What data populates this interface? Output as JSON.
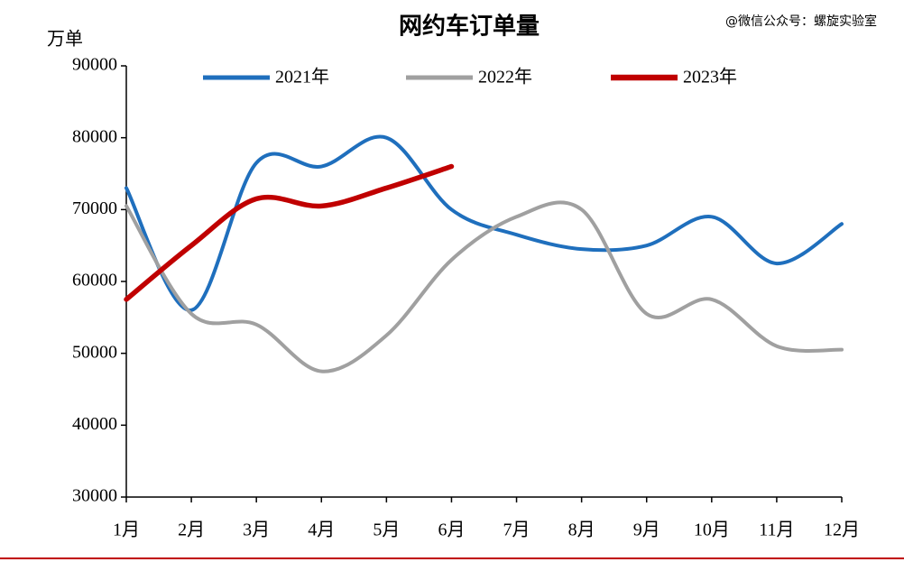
{
  "chart_data": {
    "type": "line",
    "title": "网约车订单量",
    "y_axis_label": "万单",
    "watermark": "@微信公众号：螺旋实验室",
    "categories": [
      "1月",
      "2月",
      "3月",
      "4月",
      "5月",
      "6月",
      "7月",
      "8月",
      "9月",
      "10月",
      "11月",
      "12月"
    ],
    "series": [
      {
        "name": "2021年",
        "color": "#1f6fbd",
        "values": [
          73000,
          56000,
          76500,
          76000,
          80000,
          70000,
          66500,
          64500,
          65000,
          69000,
          62500,
          68000
        ]
      },
      {
        "name": "2022年",
        "color": "#a0a0a0",
        "values": [
          70500,
          55500,
          54000,
          47500,
          52500,
          63000,
          69000,
          70000,
          55500,
          57500,
          51000,
          50500
        ]
      },
      {
        "name": "2023年",
        "color": "#c00000",
        "values": [
          57500,
          65000,
          71500,
          70500,
          73000,
          76000,
          null,
          null,
          null,
          null,
          null,
          null
        ]
      }
    ],
    "ylim": [
      30000,
      90000
    ],
    "yticks": [
      30000,
      40000,
      50000,
      60000,
      70000,
      80000,
      90000
    ]
  }
}
